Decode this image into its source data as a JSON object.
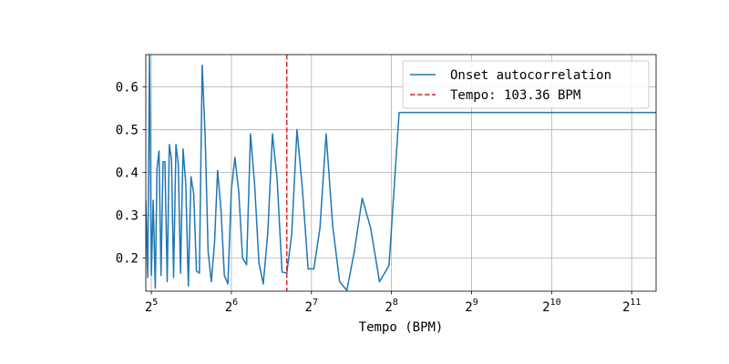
{
  "chart_data": {
    "type": "line",
    "title": "",
    "xlabel": "Tempo (BPM)",
    "ylabel": "",
    "x_scale": "log2",
    "xlim": [
      30.5,
      2530
    ],
    "ylim": [
      0.123,
      0.675
    ],
    "grid": true,
    "legend_position": "top-right",
    "x_ticks": [
      {
        "base": "2",
        "exp": "5",
        "value": 32
      },
      {
        "base": "2",
        "exp": "6",
        "value": 64
      },
      {
        "base": "2",
        "exp": "7",
        "value": 128
      },
      {
        "base": "2",
        "exp": "8",
        "value": 256
      },
      {
        "base": "2",
        "exp": "9",
        "value": 512
      },
      {
        "base": "2",
        "exp": "10",
        "value": 1024
      },
      {
        "base": "2",
        "exp": "11",
        "value": 2048
      }
    ],
    "y_ticks": [
      "0.2",
      "0.3",
      "0.4",
      "0.5",
      "0.6"
    ],
    "series": [
      {
        "name": "Onset autocorrelation",
        "color": "#1f77b4",
        "x": [
          30.5,
          31.0,
          31.5,
          32.0,
          32.5,
          33.1,
          33.6,
          34.2,
          34.8,
          35.4,
          36.0,
          36.7,
          37.4,
          38.1,
          38.8,
          39.6,
          40.4,
          41.2,
          42.1,
          43.1,
          44.1,
          45.1,
          46.2,
          47.3,
          48.5,
          49.7,
          51.0,
          52.3,
          53.8,
          55.3,
          56.8,
          58.5,
          60.2,
          62.1,
          64.0,
          66.0,
          68.2,
          70.5,
          73.0,
          75.5,
          78.3,
          81.2,
          84.3,
          87.7,
          91.3,
          95.1,
          99.2,
          103.4,
          107.9,
          112.9,
          118.4,
          124.3,
          130.7,
          137.7,
          145.4,
          153.9,
          163.3,
          173.8,
          185.5,
          198.7,
          213.7,
          230.8,
          250.5,
          273.4,
          300.4,
          332.5,
          371.6,
          420.0,
          481.1,
          561.3,
          670.0,
          828.0,
          1064.6,
          1447.9,
          2530.0
        ],
        "values": [
          0.335,
          0.155,
          0.68,
          0.16,
          0.335,
          0.13,
          0.41,
          0.45,
          0.16,
          0.425,
          0.425,
          0.145,
          0.465,
          0.43,
          0.155,
          0.465,
          0.42,
          0.165,
          0.455,
          0.375,
          0.135,
          0.39,
          0.35,
          0.17,
          0.165,
          0.65,
          0.48,
          0.215,
          0.145,
          0.235,
          0.405,
          0.31,
          0.16,
          0.14,
          0.36,
          0.435,
          0.355,
          0.2,
          0.185,
          0.49,
          0.37,
          0.19,
          0.14,
          0.26,
          0.49,
          0.385,
          0.168,
          0.165,
          0.255,
          0.5,
          0.36,
          0.175,
          0.175,
          0.27,
          0.49,
          0.275,
          0.145,
          0.125,
          0.215,
          0.34,
          0.27,
          0.145,
          0.183,
          0.54,
          0.54,
          0.54,
          0.54,
          0.54,
          0.54,
          0.54,
          0.54,
          0.54,
          0.54,
          0.54,
          0.54
        ]
      }
    ],
    "tempo_line": {
      "label": "Tempo: 103.36 BPM",
      "value": 103.36,
      "color": "#d62728",
      "style": "dashed"
    }
  }
}
